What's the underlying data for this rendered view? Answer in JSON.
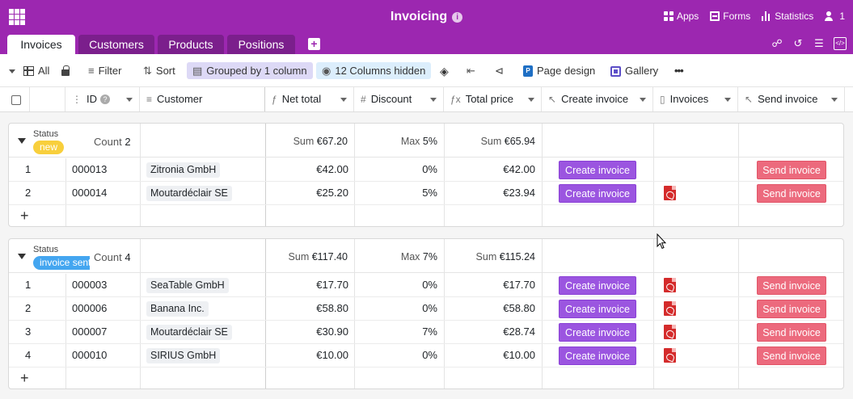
{
  "header": {
    "title": "Invoicing",
    "info_icon": "i",
    "right_items": [
      {
        "label": "Apps",
        "icon": "apps-icon"
      },
      {
        "label": "Forms",
        "icon": "forms-icon"
      },
      {
        "label": "Statistics",
        "icon": "statistics-icon"
      },
      {
        "label": "1",
        "icon": "users-icon"
      }
    ]
  },
  "tabs": [
    {
      "label": "Invoices",
      "active": true
    },
    {
      "label": "Customers"
    },
    {
      "label": "Products"
    },
    {
      "label": "Positions"
    }
  ],
  "toolbar": {
    "view_label": "All",
    "filter_label": "Filter",
    "sort_label": "Sort",
    "grouped_label": "Grouped by 1 column",
    "hidden_label": "12 Columns hidden",
    "page_design_label": "Page design",
    "gallery_label": "Gallery",
    "more_label": "•••"
  },
  "columns": [
    {
      "label": "ID",
      "icon": "id-icon"
    },
    {
      "label": "Customer",
      "icon": "text-icon"
    },
    {
      "label": "Net total",
      "icon": "formula-icon"
    },
    {
      "label": "Discount",
      "icon": "number-icon"
    },
    {
      "label": "Total price",
      "icon": "formula-icon"
    },
    {
      "label": "Create invoice",
      "icon": "button-icon"
    },
    {
      "label": "Invoices",
      "icon": "file-icon"
    },
    {
      "label": "Send invoice",
      "icon": "button-icon"
    }
  ],
  "groups": [
    {
      "status_label": "Status",
      "status": "new",
      "badge_color": "#f8cf3c",
      "count_label": "Count",
      "count": "2",
      "sum_net_label": "Sum",
      "sum_net": "€67.20",
      "max_discount_label": "Max",
      "max_discount": "5%",
      "sum_total_label": "Sum",
      "sum_total": "€65.94",
      "rows": [
        {
          "n": "1",
          "id": "000013",
          "customer": "Zitronia GmbH",
          "net": "€42.00",
          "discount": "0%",
          "total": "€42.00",
          "create": "Create invoice",
          "pdf": false,
          "send": "Send invoice"
        },
        {
          "n": "2",
          "id": "000014",
          "customer": "Moutardéclair SE",
          "net": "€25.20",
          "discount": "5%",
          "total": "€23.94",
          "create": "Create invoice",
          "pdf": true,
          "send": "Send invoice"
        }
      ]
    },
    {
      "status_label": "Status",
      "status": "invoice sent",
      "badge_color": "#44a6f0",
      "count_label": "Count",
      "count": "4",
      "sum_net_label": "Sum",
      "sum_net": "€117.40",
      "max_discount_label": "Max",
      "max_discount": "7%",
      "sum_total_label": "Sum",
      "sum_total": "€115.24",
      "rows": [
        {
          "n": "1",
          "id": "000003",
          "customer": "SeaTable GmbH",
          "net": "€17.70",
          "discount": "0%",
          "total": "€17.70",
          "create": "Create invoice",
          "pdf": true,
          "send": "Send invoice"
        },
        {
          "n": "2",
          "id": "000006",
          "customer": "Banana Inc.",
          "net": "€58.80",
          "discount": "0%",
          "total": "€58.80",
          "create": "Create invoice",
          "pdf": true,
          "send": "Send invoice"
        },
        {
          "n": "3",
          "id": "000007",
          "customer": "Moutardéclair SE",
          "net": "€30.90",
          "discount": "7%",
          "total": "€28.74",
          "create": "Create invoice",
          "pdf": true,
          "send": "Send invoice"
        },
        {
          "n": "4",
          "id": "000010",
          "customer": "SIRIUS GmbH",
          "net": "€10.00",
          "discount": "0%",
          "total": "€10.00",
          "create": "Create invoice",
          "pdf": true,
          "send": "Send invoice"
        }
      ]
    }
  ],
  "add_row_label": "+",
  "colors": {
    "brand": "#9c27b0",
    "create_button": "#9b55e0",
    "send_button": "#ec6a7d"
  }
}
